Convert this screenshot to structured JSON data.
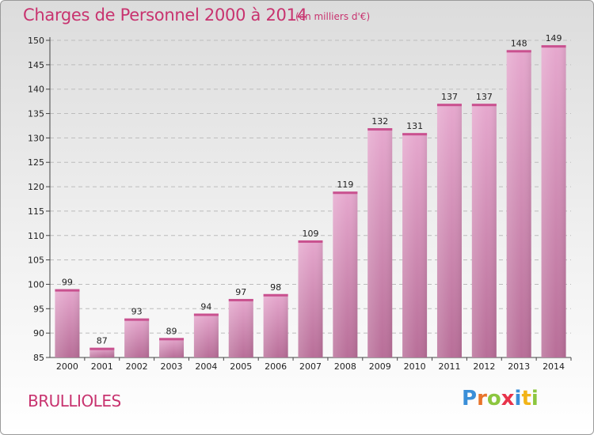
{
  "chart_data": {
    "type": "bar",
    "title": "Charges de Personnel 2000 à 2014",
    "subtitle": "(en milliers d'€)",
    "categories": [
      "2000",
      "2001",
      "2002",
      "2003",
      "2004",
      "2005",
      "2006",
      "2007",
      "2008",
      "2009",
      "2010",
      "2011",
      "2012",
      "2013",
      "2014"
    ],
    "values": [
      99,
      87,
      93,
      89,
      94,
      97,
      98,
      109,
      119,
      132,
      131,
      137,
      137,
      148,
      149
    ],
    "ylim": [
      85,
      150
    ],
    "yticks": [
      85,
      90,
      95,
      100,
      105,
      110,
      115,
      120,
      125,
      130,
      135,
      140,
      145,
      150
    ],
    "grid": true,
    "bar_color_top": "#e6a8ce",
    "bar_color_bottom": "#b86e98"
  },
  "footer": {
    "commune": "BRULLIOLES",
    "logo_text": "Proxiti"
  }
}
